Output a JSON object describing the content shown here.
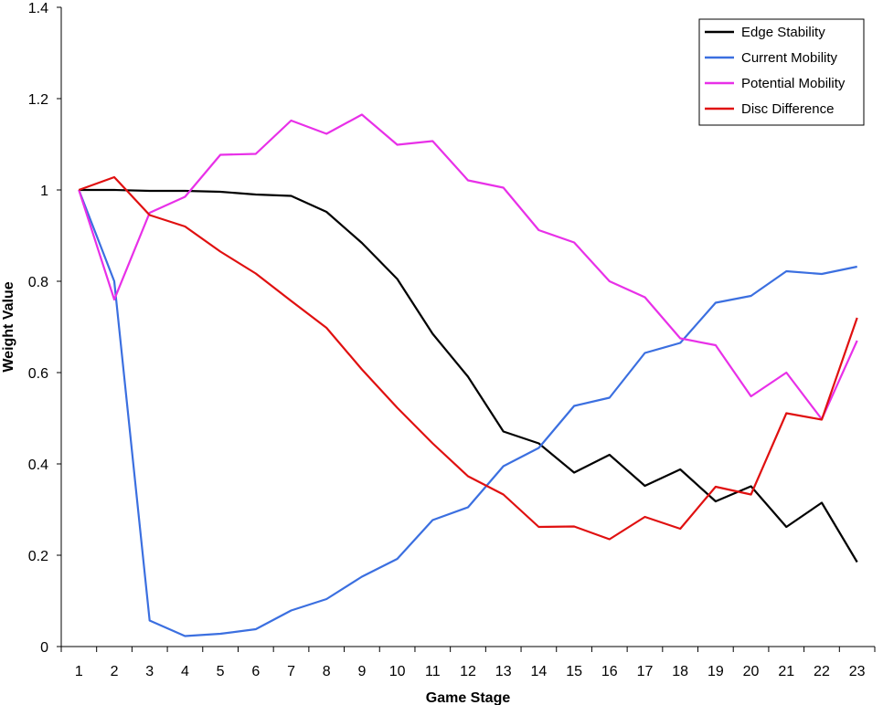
{
  "chart_data": {
    "type": "line",
    "title": "",
    "xlabel": "Game Stage",
    "ylabel": "Weight Value",
    "x": [
      1,
      2,
      3,
      4,
      5,
      6,
      7,
      8,
      9,
      10,
      11,
      12,
      13,
      14,
      15,
      16,
      17,
      18,
      19,
      20,
      21,
      22,
      23
    ],
    "ylim": [
      0,
      1.4
    ],
    "y_ticks": [
      "0",
      "0.2",
      "0.4",
      "0.6",
      "0.8",
      "1",
      "1.2",
      "1.4"
    ],
    "x_ticks": [
      "1",
      "2",
      "3",
      "4",
      "5",
      "6",
      "7",
      "8",
      "9",
      "10",
      "11",
      "12",
      "13",
      "14",
      "15",
      "16",
      "17",
      "18",
      "19",
      "20",
      "21",
      "22",
      "23"
    ],
    "grid": false,
    "legend_position": "top-right",
    "series": [
      {
        "name": "Edge Stability",
        "color": "#000000",
        "values": [
          1.0,
          1.0,
          0.998,
          0.998,
          0.996,
          0.99,
          0.987,
          0.952,
          0.884,
          0.805,
          0.685,
          0.591,
          0.471,
          0.445,
          0.381,
          0.42,
          0.352,
          0.388,
          0.318,
          0.351,
          0.262,
          0.315,
          0.185
        ]
      },
      {
        "name": "Current Mobility",
        "color": "#3B6FE0",
        "values": [
          1.0,
          0.8,
          0.057,
          0.023,
          0.028,
          0.038,
          0.079,
          0.104,
          0.153,
          0.192,
          0.277,
          0.305,
          0.395,
          0.435,
          0.527,
          0.545,
          0.643,
          0.665,
          0.753,
          0.768,
          0.822,
          0.816,
          0.832
        ]
      },
      {
        "name": "Potential Mobility",
        "color": "#E830E8",
        "values": [
          1.0,
          0.76,
          0.95,
          0.985,
          1.077,
          1.079,
          1.152,
          1.123,
          1.165,
          1.099,
          1.107,
          1.021,
          1.005,
          0.912,
          0.885,
          0.8,
          0.765,
          0.675,
          0.66,
          0.548,
          0.6,
          0.498,
          0.67
        ]
      },
      {
        "name": "Disc Difference",
        "color": "#E01010",
        "values": [
          1.0,
          1.028,
          0.945,
          0.92,
          0.865,
          0.817,
          0.757,
          0.698,
          0.607,
          0.523,
          0.445,
          0.373,
          0.333,
          0.262,
          0.263,
          0.235,
          0.284,
          0.258,
          0.35,
          0.333,
          0.511,
          0.497,
          0.72
        ]
      }
    ]
  }
}
